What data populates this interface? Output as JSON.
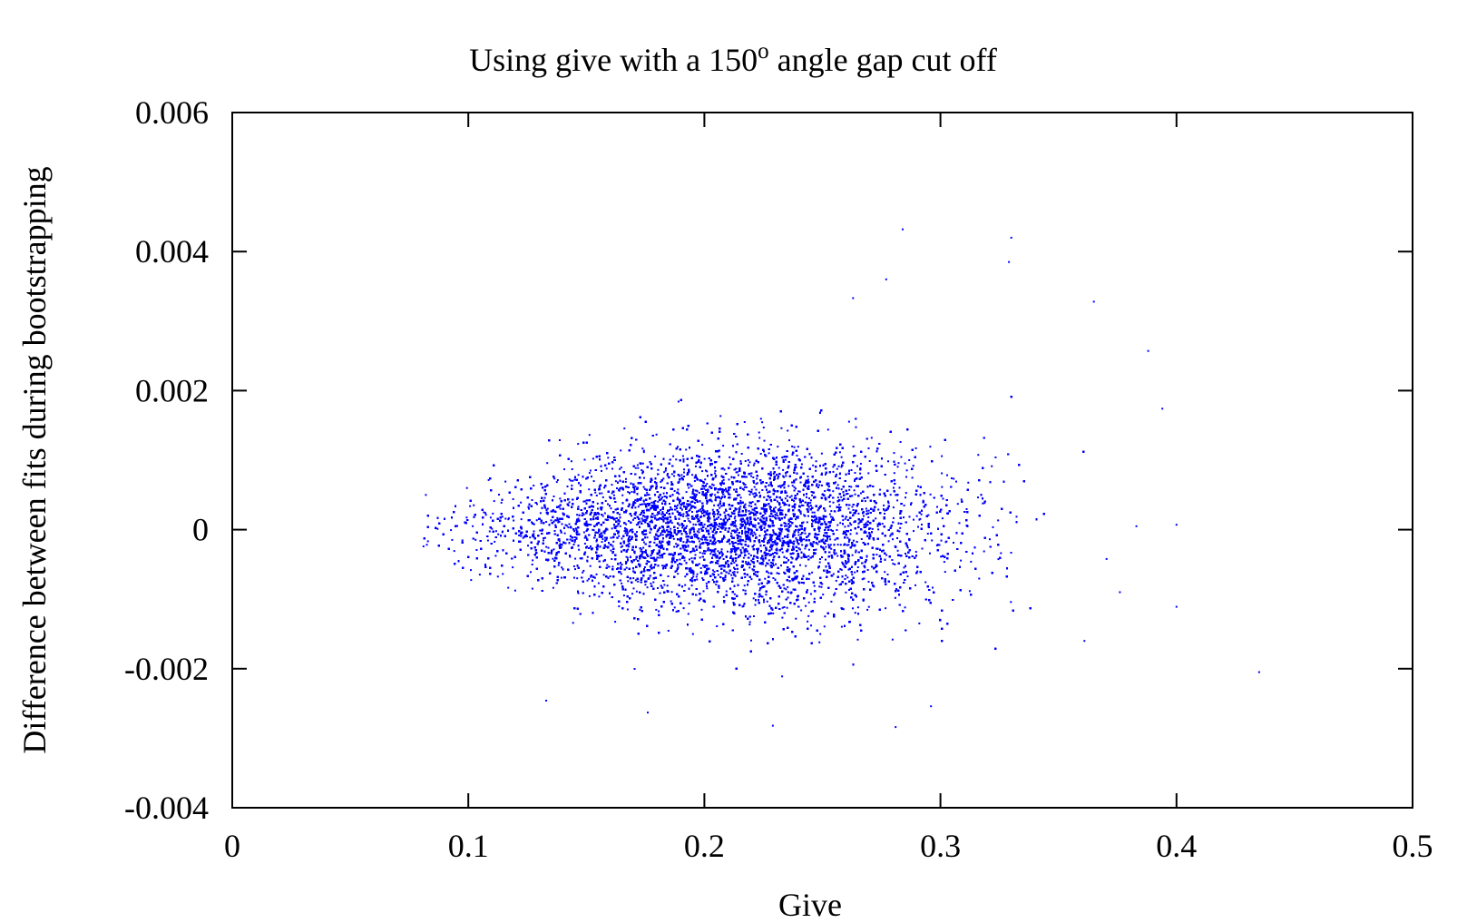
{
  "chart_data": {
    "type": "scatter",
    "title": "Using give with a 150",
    "title_superscript": "o",
    "title_suffix": " angle gap cut off",
    "xlabel": "Give",
    "ylabel": "Difference between fits during bootstrapping",
    "xlim": [
      0,
      0.5
    ],
    "ylim": [
      -0.004,
      0.006
    ],
    "x_ticks": [
      {
        "value": 0,
        "label": "0"
      },
      {
        "value": 0.1,
        "label": "0.1"
      },
      {
        "value": 0.2,
        "label": "0.2"
      },
      {
        "value": 0.3,
        "label": "0.3"
      },
      {
        "value": 0.4,
        "label": "0.4"
      },
      {
        "value": 0.5,
        "label": "0.5"
      }
    ],
    "y_ticks": [
      {
        "value": -0.004,
        "label": "-0.004"
      },
      {
        "value": -0.002,
        "label": "-0.002"
      },
      {
        "value": 0,
        "label": "0"
      },
      {
        "value": 0.002,
        "label": "0.002"
      },
      {
        "value": 0.004,
        "label": "0.004"
      },
      {
        "value": 0.006,
        "label": "0.006"
      }
    ],
    "grid": false,
    "legend": "none",
    "marker_color": "#0000ff",
    "series": [
      {
        "density_model": {
          "x_range": [
            0.08,
            0.4
          ],
          "x_mean": 0.21,
          "x_std": 0.048,
          "y_mean": 0.0,
          "y_std_at_x": [
            [
              0.08,
              0.00017
            ],
            [
              0.1,
              0.00028
            ],
            [
              0.15,
              0.0005
            ],
            [
              0.2,
              0.00058
            ],
            [
              0.25,
              0.00062
            ],
            [
              0.3,
              0.00065
            ],
            [
              0.35,
              0.0007
            ],
            [
              0.4,
              0.0007
            ]
          ],
          "approx_points": 40000
        },
        "notable_points": [
          {
            "x": 0.284,
            "y": 0.00432
          },
          {
            "x": 0.33,
            "y": 0.0042
          },
          {
            "x": 0.329,
            "y": 0.00385
          },
          {
            "x": 0.277,
            "y": 0.0036
          },
          {
            "x": 0.263,
            "y": 0.00333
          },
          {
            "x": 0.365,
            "y": 0.00328
          },
          {
            "x": 0.388,
            "y": 0.00257
          },
          {
            "x": 0.394,
            "y": 0.00174
          },
          {
            "x": 0.4,
            "y": 7e-05
          },
          {
            "x": 0.4,
            "y": -0.00111
          },
          {
            "x": 0.435,
            "y": -0.00205
          },
          {
            "x": 0.361,
            "y": -0.0016
          },
          {
            "x": 0.229,
            "y": -0.00282
          },
          {
            "x": 0.281,
            "y": -0.00284
          },
          {
            "x": 0.176,
            "y": -0.00263
          },
          {
            "x": 0.296,
            "y": -0.00254
          },
          {
            "x": 0.133,
            "y": -0.00246
          },
          {
            "x": 0.376,
            "y": -0.0009
          },
          {
            "x": 0.383,
            "y": 5e-05
          },
          {
            "x": 0.082,
            "y": 0.0005
          },
          {
            "x": 0.081,
            "y": -0.00024
          }
        ]
      }
    ]
  }
}
